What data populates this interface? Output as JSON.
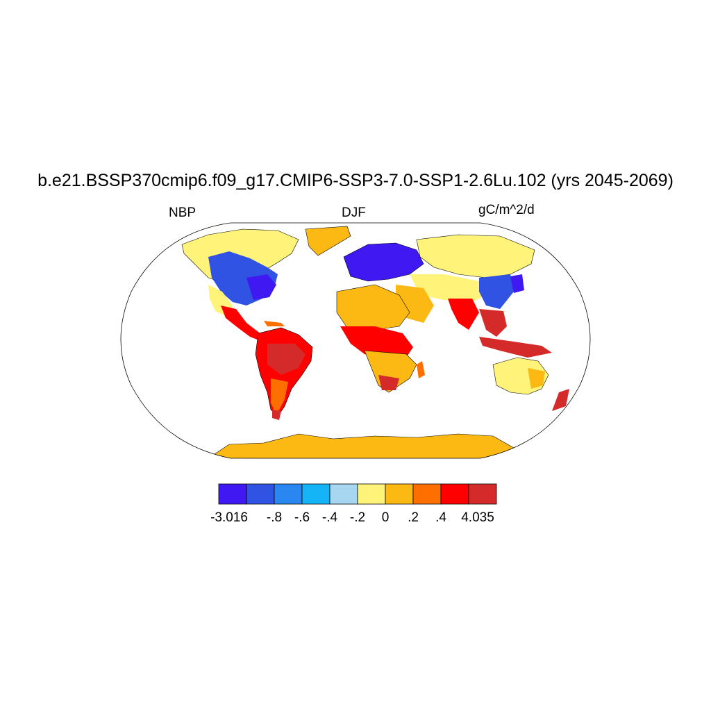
{
  "title": "b.e21.BSSP370cmip6.f09_g17.CMIP6-SSP3-7.0-SSP1-2.6Lu.102 (yrs 2045-2069)",
  "left_label": "NBP",
  "center_label": "DJF",
  "right_label": "gC/m^2/d",
  "colorbar": {
    "colors": [
      "#4019f2",
      "#3153e4",
      "#2a86f0",
      "#14b4f6",
      "#a6d6f0",
      "#fff37a",
      "#fdb913",
      "#ff6f00",
      "#ff0000",
      "#d42a2a"
    ],
    "labels": [
      "-3.016",
      "-.8",
      "-.6",
      "-.4",
      "-.2",
      "0",
      ".2",
      ".4",
      "4.035"
    ]
  },
  "colors": {
    "antarctica": "#fdb913",
    "greenland": "#fdb913",
    "coastline": "#000000"
  }
}
